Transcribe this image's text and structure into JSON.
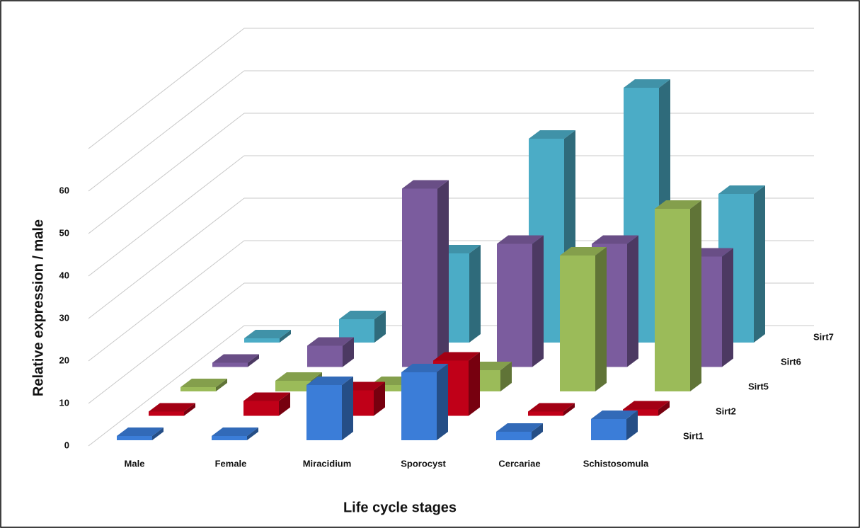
{
  "chart_data": {
    "type": "bar3d",
    "x_label": "Life cycle stages",
    "y_label": "Relative expression / male",
    "categories": [
      "Male",
      "Female",
      "Miracidium",
      "Sporocyst",
      "Cercariae",
      "Schistosomula"
    ],
    "series": [
      {
        "name": "Sirt1",
        "color": "#3b7dd8",
        "values": [
          1,
          1,
          13,
          16,
          2,
          5
        ]
      },
      {
        "name": "Sirt2",
        "color": "#c00018",
        "values": [
          1,
          3.5,
          6,
          13,
          1,
          1.5
        ]
      },
      {
        "name": "Sirt5",
        "color": "#9bbb59",
        "values": [
          1,
          2.5,
          1.5,
          5,
          32,
          43
        ]
      },
      {
        "name": "Sirt6",
        "color": "#7b5c9e",
        "values": [
          1,
          5,
          42,
          29,
          29,
          26
        ]
      },
      {
        "name": "Sirt7",
        "color": "#4bacc6",
        "values": [
          1,
          5.5,
          21,
          48,
          60,
          35
        ]
      }
    ],
    "ylim": [
      0,
      70
    ],
    "yticks": [
      0,
      10,
      20,
      30,
      40,
      50,
      60
    ],
    "grid": true
  }
}
